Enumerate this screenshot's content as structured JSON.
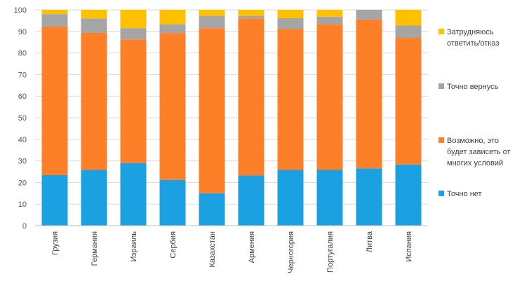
{
  "chart_data": {
    "type": "bar",
    "stacked": true,
    "title": "",
    "xlabel": "",
    "ylabel": "",
    "ylim": [
      0,
      100
    ],
    "yticks": [
      0,
      10,
      20,
      30,
      40,
      50,
      60,
      70,
      80,
      90,
      100
    ],
    "legend_position": "right",
    "categories": [
      "Грузия",
      "Германия",
      "Израиль",
      "Сербия",
      "Казахстан",
      "Армения",
      "Черногория",
      "Португалия",
      "Литва",
      "Испания"
    ],
    "series": [
      {
        "name": "Точно нет",
        "color": "#1ba1e2",
        "values": [
          23.4,
          25.8,
          29.0,
          21.2,
          15.0,
          23.2,
          25.8,
          25.8,
          26.5,
          28.3
        ]
      },
      {
        "name": "Возможно, это будет зависеть от многих условий",
        "color": "#fd7f28",
        "values": [
          68.8,
          63.5,
          57.3,
          68.0,
          76.5,
          72.8,
          65.3,
          67.5,
          69.0,
          58.7
        ]
      },
      {
        "name": "Точно вернусь",
        "color": "#a5a5a5",
        "values": [
          5.8,
          6.7,
          5.2,
          4.1,
          5.7,
          1.2,
          5.0,
          3.5,
          4.5,
          5.7
        ]
      },
      {
        "name": "Затрудняюсь ответить/отказ",
        "color": "#ffc000",
        "values": [
          2.0,
          4.0,
          8.5,
          6.7,
          2.8,
          2.8,
          3.9,
          3.2,
          0.0,
          7.3
        ]
      }
    ],
    "legend": [
      {
        "lines": [
          "Затрудняюсь",
          "ответить/отказ"
        ]
      },
      {
        "lines": [
          "Точно вернусь"
        ]
      },
      {
        "lines": [
          "Возможно, это",
          "будет зависеть от",
          "многих условий"
        ]
      },
      {
        "lines": [
          "Точно нет"
        ]
      }
    ]
  }
}
